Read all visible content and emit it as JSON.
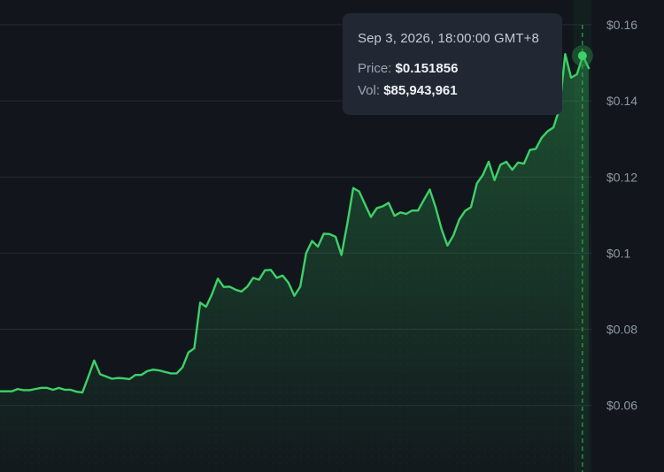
{
  "colors": {
    "background": "#12161c",
    "line": "#3dd168",
    "grid": "#252b33",
    "crosshair": "#2fa84f",
    "axis_text": "#8e97a3"
  },
  "tooltip": {
    "date": "Sep 3, 2026, 18:00:00 GMT+8",
    "price_label": "Price:",
    "price_value": "$0.151856",
    "vol_label": "Vol:",
    "vol_value": "$85,943,961"
  },
  "chart_data": {
    "type": "area",
    "title": "",
    "xlabel": "",
    "ylabel": "",
    "ylim": [
      0.0425,
      0.1665
    ],
    "y_ticks": [
      "$0.16",
      "$0.14",
      "$0.12",
      "$0.1",
      "$0.08",
      "$0.06"
    ],
    "y_tick_values": [
      0.16,
      0.14,
      0.12,
      0.1,
      0.08,
      0.06
    ],
    "grid": true,
    "series": [
      {
        "values": [
          0.0637,
          0.0637,
          0.0637,
          0.0643,
          0.064,
          0.064,
          0.0643,
          0.0646,
          0.0646,
          0.0641,
          0.0646,
          0.0641,
          0.0641,
          0.0636,
          0.0634,
          0.0675,
          0.0718,
          0.0682,
          0.0676,
          0.067,
          0.0672,
          0.0671,
          0.0669,
          0.068,
          0.068,
          0.069,
          0.0694,
          0.0692,
          0.0688,
          0.0684,
          0.0684,
          0.07,
          0.0739,
          0.075,
          0.087,
          0.0859,
          0.0892,
          0.0933,
          0.0911,
          0.0912,
          0.0904,
          0.0899,
          0.0912,
          0.0935,
          0.093,
          0.0955,
          0.0956,
          0.0935,
          0.0941,
          0.0922,
          0.0888,
          0.0912,
          0.1,
          0.1032,
          0.1017,
          0.1051,
          0.105,
          0.1043,
          0.0995,
          0.1078,
          0.1171,
          0.1162,
          0.1128,
          0.1095,
          0.1118,
          0.1123,
          0.1132,
          0.1098,
          0.1107,
          0.1103,
          0.1112,
          0.1112,
          0.114,
          0.1167,
          0.112,
          0.1063,
          0.102,
          0.1046,
          0.1088,
          0.1111,
          0.1121,
          0.1183,
          0.1205,
          0.124,
          0.1192,
          0.1232,
          0.124,
          0.1219,
          0.1238,
          0.1235,
          0.1271,
          0.1274,
          0.1303,
          0.132,
          0.133,
          0.1378,
          0.1523,
          0.1461,
          0.147,
          0.1519,
          0.1486
        ]
      }
    ],
    "highlight": {
      "index": 99,
      "value": 0.151856
    }
  }
}
